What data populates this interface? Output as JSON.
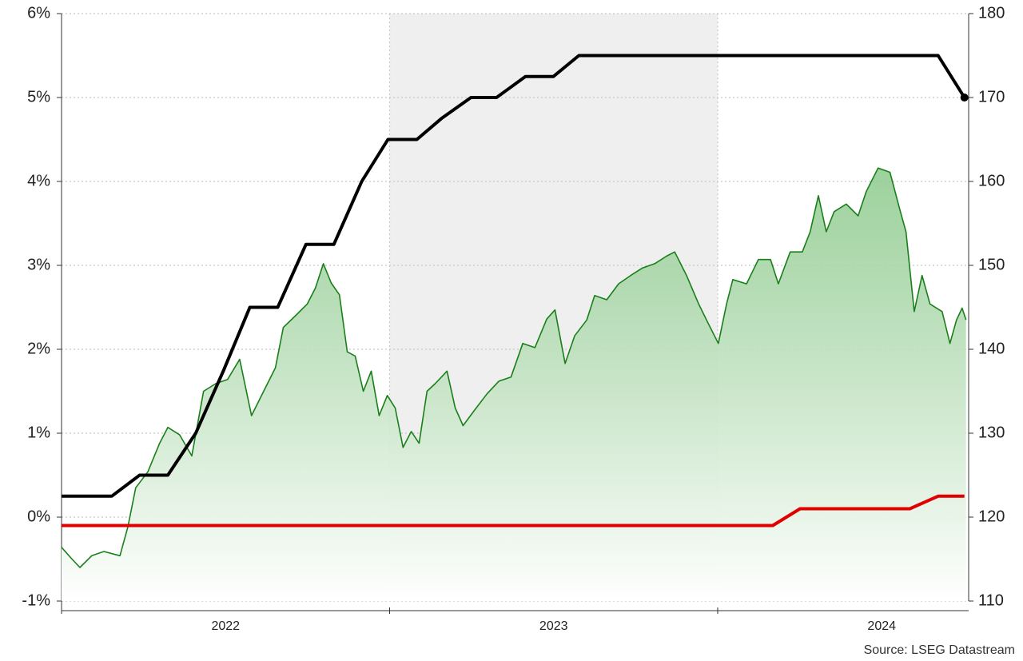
{
  "chart_data": {
    "type": "line",
    "source": "Source: LSEG Datastream",
    "xlim": [
      2022,
      2024.765
    ],
    "xticks": [
      {
        "value": 2022.5,
        "label": "2022"
      },
      {
        "value": 2023.5,
        "label": "2023"
      },
      {
        "value": 2024.5,
        "label": "2024"
      }
    ],
    "x_boundaries": [
      2022,
      2023,
      2024
    ],
    "shaded_span": [
      2023,
      2024
    ],
    "ylim": [
      -1,
      6
    ],
    "yticks": [
      {
        "value": -1,
        "label": "-1%"
      },
      {
        "value": 0,
        "label": "0%"
      },
      {
        "value": 1,
        "label": "1%"
      },
      {
        "value": 2,
        "label": "2%"
      },
      {
        "value": 3,
        "label": "3%"
      },
      {
        "value": 4,
        "label": "4%"
      },
      {
        "value": 5,
        "label": "5%"
      },
      {
        "value": 6,
        "label": "6%"
      }
    ],
    "y2lim": [
      110,
      180
    ],
    "y2ticks": [
      110,
      120,
      130,
      140,
      150,
      160,
      170,
      180
    ],
    "grid": true,
    "series": [
      {
        "color": "#1a7f1a",
        "axis": "y2",
        "area": true,
        "x": [
          2022.0,
          2022.032,
          2022.056,
          2022.092,
          2022.129,
          2022.178,
          2022.202,
          2022.226,
          2022.263,
          2022.299,
          2022.324,
          2022.36,
          2022.397,
          2022.433,
          2022.47,
          2022.506,
          2022.543,
          2022.579,
          2022.616,
          2022.652,
          2022.676,
          2022.713,
          2022.749,
          2022.774,
          2022.798,
          2022.822,
          2022.847,
          2022.871,
          2022.895,
          2022.92,
          2022.944,
          2022.968,
          2022.993,
          2023.017,
          2023.041,
          2023.066,
          2023.09,
          2023.114,
          2023.139,
          2023.175,
          2023.2,
          2023.224,
          2023.26,
          2023.297,
          2023.333,
          2023.37,
          2023.406,
          2023.443,
          2023.479,
          2023.504,
          2023.535,
          2023.564,
          2023.601,
          2023.625,
          2023.662,
          2023.698,
          2023.735,
          2023.771,
          2023.808,
          2023.844,
          2023.869,
          2023.905,
          2023.942,
          2023.966,
          2024.002,
          2024.027,
          2024.046,
          2024.088,
          2024.124,
          2024.161,
          2024.185,
          2024.221,
          2024.258,
          2024.282,
          2024.307,
          2024.331,
          2024.355,
          2024.392,
          2024.428,
          2024.453,
          2024.489,
          2024.525,
          2024.557,
          2024.574,
          2024.599,
          2024.623,
          2024.647,
          2024.684,
          2024.708,
          2024.728,
          2024.745,
          2024.757
        ],
        "values": [
          116.4,
          115.0,
          114.0,
          115.4,
          115.9,
          115.4,
          118.8,
          123.5,
          125.4,
          128.8,
          130.7,
          129.8,
          127.3,
          135.0,
          135.9,
          136.4,
          138.8,
          132.1,
          135.0,
          137.8,
          142.6,
          144.0,
          145.4,
          147.3,
          150.2,
          147.9,
          146.5,
          139.7,
          139.2,
          135.0,
          137.4,
          132.1,
          134.5,
          133.0,
          128.3,
          130.2,
          128.8,
          135.0,
          135.9,
          137.4,
          133.0,
          130.9,
          132.8,
          134.7,
          136.2,
          136.7,
          140.7,
          140.2,
          143.6,
          144.7,
          138.3,
          141.6,
          143.5,
          146.4,
          145.9,
          147.8,
          148.8,
          149.7,
          150.2,
          151.1,
          151.6,
          148.8,
          145.4,
          143.5,
          140.7,
          145.4,
          148.3,
          147.8,
          150.7,
          150.7,
          147.8,
          151.6,
          151.6,
          154.0,
          158.3,
          154.0,
          156.4,
          157.3,
          155.9,
          158.8,
          161.6,
          161.1,
          156.4,
          154.0,
          144.5,
          148.8,
          145.4,
          144.5,
          140.7,
          143.5,
          144.9,
          143.5
        ]
      },
      {
        "color": "#e00000",
        "x": [
          2022.0,
          2024.168,
          2024.251,
          2024.586,
          2024.672,
          2024.752
        ],
        "values": [
          -0.1,
          -0.1,
          0.1,
          0.1,
          0.25,
          0.25
        ]
      },
      {
        "color": "#000000",
        "end_marker": true,
        "x": [
          2022.0,
          2022.153,
          2022.238,
          2022.324,
          2022.409,
          2022.494,
          2022.574,
          2022.659,
          2022.745,
          2022.83,
          2022.915,
          2022.995,
          2023.083,
          2023.158,
          2023.248,
          2023.326,
          2023.414,
          2023.499,
          2023.577,
          2024.672,
          2024.752
        ],
        "values": [
          0.25,
          0.25,
          0.5,
          0.5,
          1.0,
          1.75,
          2.5,
          2.5,
          3.25,
          3.25,
          4.0,
          4.5,
          4.5,
          4.75,
          5.0,
          5.0,
          5.25,
          5.25,
          5.5,
          5.5,
          5.0
        ]
      }
    ]
  }
}
